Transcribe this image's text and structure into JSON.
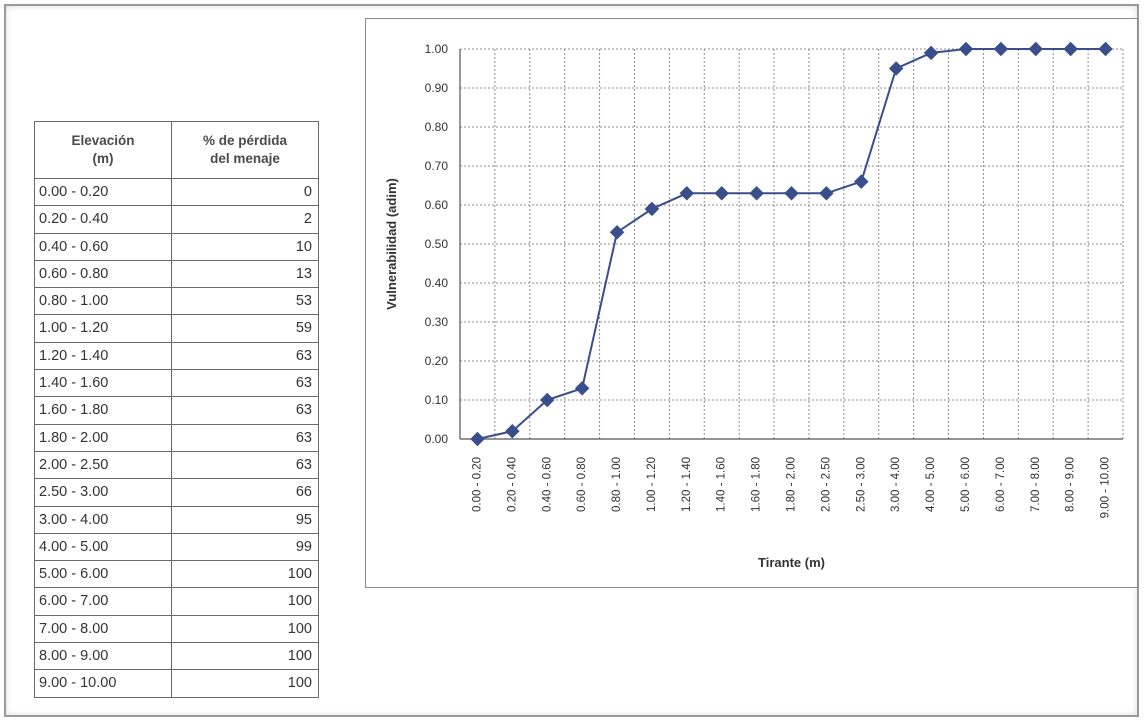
{
  "table": {
    "header_col1_line1": "Elevación",
    "header_col1_line2": "(m)",
    "header_col2_line1": "% de pérdida",
    "header_col2_line2": "del menaje",
    "rows": [
      {
        "range": "0.00 - 0.20",
        "value": "0"
      },
      {
        "range": "0.20 - 0.40",
        "value": "2"
      },
      {
        "range": "0.40 - 0.60",
        "value": "10"
      },
      {
        "range": "0.60 - 0.80",
        "value": "13"
      },
      {
        "range": "0.80 - 1.00",
        "value": "53"
      },
      {
        "range": "1.00 - 1.20",
        "value": "59"
      },
      {
        "range": "1.20 - 1.40",
        "value": "63"
      },
      {
        "range": "1.40 - 1.60",
        "value": "63"
      },
      {
        "range": "1.60 - 1.80",
        "value": "63"
      },
      {
        "range": "1.80 - 2.00",
        "value": "63"
      },
      {
        "range": "2.00 - 2.50",
        "value": "63"
      },
      {
        "range": "2.50 - 3.00",
        "value": "66"
      },
      {
        "range": "3.00 - 4.00",
        "value": "95"
      },
      {
        "range": "4.00 - 5.00",
        "value": "99"
      },
      {
        "range": "5.00 - 6.00",
        "value": "100"
      },
      {
        "range": "6.00 - 7.00",
        "value": "100"
      },
      {
        "range": "7.00 - 8.00",
        "value": "100"
      },
      {
        "range": "8.00 - 9.00",
        "value": "100"
      },
      {
        "range": "9.00 - 10.00",
        "value": "100"
      }
    ]
  },
  "chart_data": {
    "type": "line",
    "title": "",
    "xlabel": "Tirante (m)",
    "ylabel": "Vulnerabilidad (adim)",
    "ylim": [
      0,
      1
    ],
    "y_ticks": [
      "0.00",
      "0.10",
      "0.20",
      "0.30",
      "0.40",
      "0.50",
      "0.60",
      "0.70",
      "0.80",
      "0.90",
      "1.00"
    ],
    "grid": true,
    "legend": "none",
    "marker": "diamond",
    "line_color": "#3b4e8c",
    "categories": [
      "0.00 - 0.20",
      "0.20 - 0.40",
      "0.40 - 0.60",
      "0.60 - 0.80",
      "0.80 - 1.00",
      "1.00 - 1.20",
      "1.20 - 1.40",
      "1.40 - 1.60",
      "1.60 - 1.80",
      "1.80 - 2.00",
      "2.00 - 2.50",
      "2.50 - 3.00",
      "3.00 - 4.00",
      "4.00 - 5.00",
      "5.00 - 6.00",
      "6.00 - 7.00",
      "7.00 - 8.00",
      "8.00 - 9.00",
      "9.00 - 10.00"
    ],
    "series": [
      {
        "values": [
          0.0,
          0.02,
          0.1,
          0.13,
          0.53,
          0.59,
          0.63,
          0.63,
          0.63,
          0.63,
          0.63,
          0.66,
          0.95,
          0.99,
          1.0,
          1.0,
          1.0,
          1.0,
          1.0
        ]
      }
    ]
  }
}
